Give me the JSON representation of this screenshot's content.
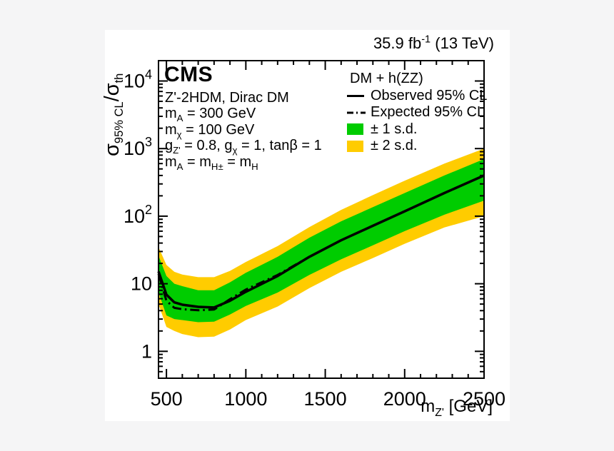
{
  "header": {
    "lumi_prefix": "35.9 fb",
    "lumi_exp": "-1",
    "lumi_suffix": " (13 TeV)"
  },
  "branding": {
    "experiment": "CMS"
  },
  "annotations": {
    "line1": "Z'-2HDM, Dirac DM",
    "line2_pre": "m",
    "line2_sub": "A",
    "line2_post": " = 300 GeV",
    "line3_pre": "m",
    "line3_sub": "χ",
    "line3_post": " = 100 GeV",
    "line4_a": "g",
    "line4_a_sub": "Z'",
    "line4_b": " = 0.8, g",
    "line4_b_sub": "χ",
    "line4_c": " = 1, tanβ = 1",
    "line5_a": "m",
    "line5_a_sub": "A",
    "line5_b": " = m",
    "line5_b_sub": "H±",
    "line5_c": " = m",
    "line5_c_sub": "H"
  },
  "legend": {
    "header": "DM + h(ZZ)",
    "observed": "Observed 95% CL",
    "expected": "Expected 95% CL",
    "band1": "± 1 s.d.",
    "band2": "± 2 s.d."
  },
  "axes": {
    "y_title_a": "σ",
    "y_title_a_sub": "95% CL",
    "y_title_b": "/σ",
    "y_title_b_sub": "th",
    "x_title_pre": "m",
    "x_title_sub": "Z'",
    "x_title_post": " [GeV]"
  },
  "chart_data": {
    "type": "line",
    "title": "CMS, 35.9 fb-1 (13 TeV), Z'-2HDM Dirac DM, DM + h(ZZ) 95% CL upper limits",
    "xlabel": "m_Z' [GeV]",
    "ylabel": "sigma_95%CL / sigma_th",
    "x_scale": "linear",
    "y_scale": "log",
    "x_range": [
      450,
      2500
    ],
    "y_range": [
      0.4,
      20000
    ],
    "grid": false,
    "legend_position": "top-right-inside",
    "x_major_ticks": [
      {
        "v": 500,
        "label": "500"
      },
      {
        "v": 1000,
        "label": "1000"
      },
      {
        "v": 1500,
        "label": "1500"
      },
      {
        "v": 2000,
        "label": "2000"
      },
      {
        "v": 2500,
        "label": "2500"
      }
    ],
    "x_minor_step": 100,
    "y_major_ticks": [
      {
        "v": 1,
        "base": "1",
        "exp": ""
      },
      {
        "v": 10,
        "base": "10",
        "exp": ""
      },
      {
        "v": 100,
        "base": "10",
        "exp": "2"
      },
      {
        "v": 1000,
        "base": "10",
        "exp": "3"
      },
      {
        "v": 10000,
        "base": "10",
        "exp": "4"
      }
    ],
    "x": [
      450,
      500,
      550,
      600,
      700,
      800,
      900,
      1000,
      1200,
      1400,
      1600,
      1800,
      2000,
      2250,
      2500
    ],
    "bands": [
      {
        "name": "± 2 s.d.",
        "color": "#FFCC00",
        "hi": [
          35,
          19,
          15,
          13.7,
          12.5,
          12.5,
          15.5,
          21,
          36,
          69,
          124,
          205,
          335,
          600,
          1000
        ],
        "lo": [
          5.0,
          2.3,
          2.0,
          1.8,
          1.62,
          1.65,
          2.1,
          2.9,
          4.6,
          8.6,
          15,
          24,
          39,
          68,
          100
        ]
      },
      {
        "name": "± 1 s.d.",
        "color": "#00CC00",
        "hi": [
          26,
          13,
          10,
          9.2,
          8.0,
          8.0,
          10.5,
          14.5,
          25,
          48,
          84,
          136,
          220,
          400,
          700
        ],
        "lo": [
          7.5,
          3.4,
          3.0,
          2.9,
          2.7,
          2.75,
          3.5,
          4.7,
          7.4,
          13.5,
          23,
          37,
          60,
          105,
          170
        ]
      }
    ],
    "series": [
      {
        "name": "Expected 95% CL",
        "style": "dashdot",
        "color": "#000000",
        "width": 3,
        "values": [
          14.0,
          5.6,
          4.4,
          4.2,
          4.05,
          4.15,
          5.9,
          8.2,
          13.5,
          25,
          44,
          72,
          118,
          220,
          400
        ]
      },
      {
        "name": "Observed 95% CL",
        "style": "solid",
        "color": "#000000",
        "width": 3.5,
        "values": [
          15.2,
          6.9,
          5.3,
          4.9,
          4.55,
          4.45,
          5.6,
          7.6,
          13.0,
          25,
          44,
          72,
          118,
          220,
          400
        ]
      }
    ]
  }
}
